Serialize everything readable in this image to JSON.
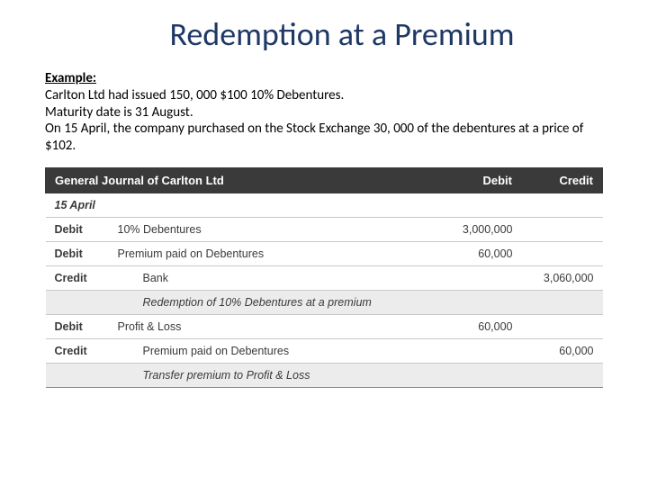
{
  "title": "Redemption at a Premium",
  "example_label": "Example:",
  "body": {
    "line1": "Carlton Ltd had issued 150, 000 $100 10% Debentures.",
    "line2": "Maturity date is 31 August.",
    "line3": "On 15 April, the company purchased on the Stock Exchange 30, 000 of the debentures at a price of $102."
  },
  "table": {
    "header": {
      "title": "General Journal of Carlton Ltd",
      "debit": "Debit",
      "credit": "Credit"
    },
    "date_label": "15 April",
    "rows": {
      "r1": {
        "c0": "Debit",
        "desc": "10% Debentures",
        "debit": "3,000,000",
        "credit": ""
      },
      "r2": {
        "c0": "Debit",
        "desc": "Premium paid on Debentures",
        "debit": "60,000",
        "credit": ""
      },
      "r3": {
        "c0": "Credit",
        "desc": "Bank",
        "debit": "",
        "credit": "3,060,000"
      },
      "r4": {
        "c0": "",
        "desc": "Redemption of 10% Debentures at a premium",
        "debit": "",
        "credit": ""
      },
      "r5": {
        "c0": "Debit",
        "desc": "Profit & Loss",
        "debit": "60,000",
        "credit": ""
      },
      "r6": {
        "c0": "Credit",
        "desc": "Premium paid on Debentures",
        "debit": "",
        "credit": "60,000"
      },
      "r7": {
        "c0": "",
        "desc": "Transfer premium to Profit & Loss",
        "debit": "",
        "credit": ""
      }
    }
  },
  "colors": {
    "title_color": "#1f3864",
    "header_bg": "#3a3a3a",
    "header_fg": "#ffffff",
    "row_border": "#c8c8c8",
    "shaded_bg": "#ececec",
    "text": "#000000"
  }
}
